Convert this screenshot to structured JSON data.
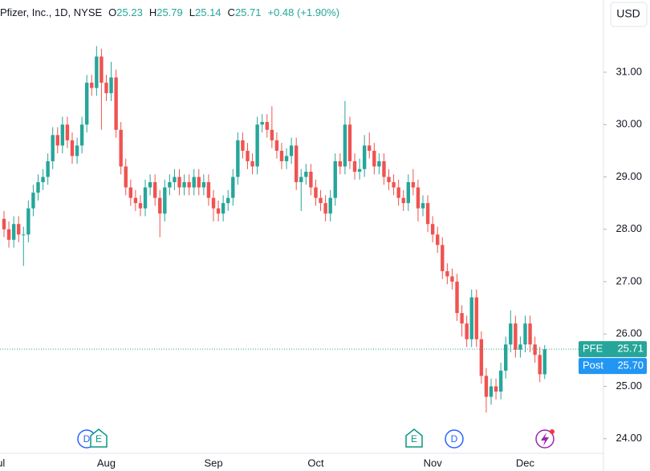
{
  "chart_data": {
    "type": "candlestick",
    "header": {
      "symbol": "Pfizer, Inc., 1D, NYSE",
      "ohlc": [
        {
          "label": "O",
          "value": "25.23"
        },
        {
          "label": "H",
          "value": "25.79"
        },
        {
          "label": "L",
          "value": "25.14"
        },
        {
          "label": "C",
          "value": "25.71"
        }
      ],
      "change": "+0.48 (+1.90%)"
    },
    "currency": "USD",
    "up_color": "#26a69a",
    "down_color": "#ef5350",
    "grid": false,
    "ylim": [
      23.72,
      32.38
    ],
    "yticks": [
      {
        "value": 24,
        "label": "24.00"
      },
      {
        "value": 25,
        "label": "25.00"
      },
      {
        "value": 26,
        "label": "26.00"
      },
      {
        "value": 27,
        "label": "27.00"
      },
      {
        "value": 28,
        "label": "28.00"
      },
      {
        "value": 29,
        "label": "29.00"
      },
      {
        "value": 30,
        "label": "30.00"
      },
      {
        "value": 31,
        "label": "31.00"
      }
    ],
    "last_price": {
      "name": "PFE",
      "value": 25.71
    },
    "post_price": {
      "name": "Post",
      "value": 25.7,
      "label": "25.70"
    },
    "events": [
      "D",
      "E",
      "E",
      "D"
    ],
    "categories": [
      "Jul",
      null,
      null,
      null,
      null,
      null,
      null,
      null,
      null,
      null,
      null,
      null,
      null,
      null,
      null,
      null,
      null,
      null,
      null,
      null,
      null,
      "Aug",
      null,
      null,
      null,
      null,
      null,
      null,
      null,
      null,
      null,
      null,
      null,
      null,
      null,
      null,
      null,
      null,
      null,
      null,
      null,
      null,
      null,
      "Sep",
      null,
      null,
      null,
      null,
      null,
      null,
      null,
      null,
      null,
      null,
      null,
      null,
      null,
      null,
      null,
      null,
      null,
      null,
      null,
      null,
      "Oct",
      null,
      null,
      null,
      null,
      null,
      null,
      null,
      null,
      null,
      null,
      null,
      null,
      null,
      null,
      null,
      null,
      null,
      null,
      null,
      null,
      null,
      null,
      null,
      "Nov",
      null,
      null,
      null,
      null,
      null,
      null,
      null,
      null,
      null,
      null,
      null,
      null,
      null,
      null,
      null,
      null,
      null,
      null,
      "Dec",
      null,
      null,
      null,
      null
    ],
    "candles": [
      [
        28.2,
        28.35,
        27.85,
        28.0
      ],
      [
        28.0,
        28.15,
        27.65,
        27.8
      ],
      [
        27.8,
        28.25,
        27.65,
        28.1
      ],
      [
        28.1,
        28.25,
        27.75,
        27.9
      ],
      [
        27.9,
        28.05,
        27.3,
        27.9
      ],
      [
        27.9,
        28.55,
        27.75,
        28.4
      ],
      [
        28.4,
        28.85,
        28.25,
        28.7
      ],
      [
        28.7,
        29.05,
        28.55,
        28.9
      ],
      [
        28.9,
        29.15,
        28.75,
        29.0
      ],
      [
        29.0,
        29.45,
        28.85,
        29.3
      ],
      [
        29.3,
        29.95,
        29.15,
        29.8
      ],
      [
        29.8,
        29.95,
        29.45,
        29.6
      ],
      [
        29.6,
        30.15,
        29.45,
        30.0
      ],
      [
        30.0,
        30.15,
        29.55,
        29.7
      ],
      [
        29.7,
        29.85,
        29.25,
        29.4
      ],
      [
        29.4,
        29.75,
        29.25,
        29.6
      ],
      [
        29.6,
        30.15,
        29.45,
        30.0
      ],
      [
        30.0,
        30.95,
        29.85,
        30.8
      ],
      [
        30.8,
        30.95,
        30.55,
        30.7
      ],
      [
        30.7,
        31.5,
        30.55,
        31.3
      ],
      [
        31.3,
        31.45,
        29.9,
        30.8
      ],
      [
        30.8,
        30.95,
        30.45,
        30.6
      ],
      [
        30.6,
        31.2,
        30.45,
        30.9
      ],
      [
        30.9,
        31.05,
        29.75,
        29.9
      ],
      [
        29.9,
        30.05,
        29.05,
        29.2
      ],
      [
        29.2,
        29.35,
        28.65,
        28.8
      ],
      [
        28.8,
        28.95,
        28.45,
        28.6
      ],
      [
        28.6,
        28.75,
        28.35,
        28.5
      ],
      [
        28.5,
        28.65,
        28.25,
        28.4
      ],
      [
        28.4,
        28.95,
        28.25,
        28.8
      ],
      [
        28.8,
        29.05,
        28.65,
        28.9
      ],
      [
        28.9,
        29.05,
        28.45,
        28.6
      ],
      [
        28.6,
        28.75,
        27.85,
        28.3
      ],
      [
        28.3,
        28.95,
        28.15,
        28.8
      ],
      [
        28.8,
        29.05,
        28.65,
        28.9
      ],
      [
        28.9,
        29.15,
        28.75,
        29.0
      ],
      [
        29.0,
        29.15,
        28.65,
        28.8
      ],
      [
        28.8,
        29.05,
        28.65,
        28.9
      ],
      [
        28.9,
        29.05,
        28.65,
        28.8
      ],
      [
        28.8,
        29.15,
        28.65,
        29.0
      ],
      [
        29.0,
        29.15,
        28.65,
        28.8
      ],
      [
        28.8,
        29.05,
        28.65,
        28.9
      ],
      [
        28.9,
        29.05,
        28.45,
        28.6
      ],
      [
        28.6,
        28.75,
        28.15,
        28.4
      ],
      [
        28.4,
        28.55,
        28.15,
        28.3
      ],
      [
        28.3,
        28.65,
        28.15,
        28.5
      ],
      [
        28.5,
        28.75,
        28.35,
        28.6
      ],
      [
        28.6,
        29.15,
        28.45,
        29.0
      ],
      [
        29.0,
        29.85,
        28.85,
        29.7
      ],
      [
        29.7,
        29.85,
        29.35,
        29.5
      ],
      [
        29.5,
        29.65,
        29.15,
        29.3
      ],
      [
        29.3,
        29.45,
        29.05,
        29.2
      ],
      [
        29.2,
        30.15,
        29.05,
        30.0
      ],
      [
        30.0,
        30.2,
        29.85,
        30.05
      ],
      [
        30.05,
        30.2,
        29.75,
        29.9
      ],
      [
        29.9,
        30.35,
        29.55,
        29.7
      ],
      [
        29.7,
        29.85,
        29.35,
        29.5
      ],
      [
        29.5,
        29.65,
        29.15,
        29.3
      ],
      [
        29.3,
        29.55,
        29.15,
        29.4
      ],
      [
        29.4,
        29.75,
        29.25,
        29.6
      ],
      [
        29.6,
        29.75,
        28.75,
        28.9
      ],
      [
        28.9,
        29.15,
        28.35,
        29.0
      ],
      [
        29.0,
        29.25,
        28.85,
        29.1
      ],
      [
        29.1,
        29.25,
        28.65,
        28.8
      ],
      [
        28.8,
        28.95,
        28.45,
        28.6
      ],
      [
        28.6,
        28.75,
        28.35,
        28.5
      ],
      [
        28.5,
        28.65,
        28.15,
        28.3
      ],
      [
        28.3,
        28.75,
        28.15,
        28.6
      ],
      [
        28.6,
        29.45,
        28.45,
        29.3
      ],
      [
        29.3,
        29.45,
        29.05,
        29.2
      ],
      [
        29.2,
        30.45,
        29.05,
        30.0
      ],
      [
        30.0,
        30.15,
        29.15,
        29.3
      ],
      [
        29.3,
        29.45,
        28.95,
        29.1
      ],
      [
        29.1,
        29.35,
        28.95,
        29.15
      ],
      [
        29.15,
        29.8,
        29.0,
        29.6
      ],
      [
        29.6,
        29.85,
        29.35,
        29.5
      ],
      [
        29.5,
        29.65,
        29.05,
        29.2
      ],
      [
        29.2,
        29.45,
        29.05,
        29.3
      ],
      [
        29.3,
        29.45,
        28.85,
        29.0
      ],
      [
        29.0,
        29.15,
        28.75,
        28.9
      ],
      [
        28.9,
        29.05,
        28.65,
        28.8
      ],
      [
        28.8,
        28.95,
        28.45,
        28.6
      ],
      [
        28.6,
        28.75,
        28.35,
        28.5
      ],
      [
        28.5,
        29.05,
        28.35,
        28.9
      ],
      [
        28.9,
        29.15,
        28.65,
        28.8
      ],
      [
        28.8,
        28.95,
        28.15,
        28.4
      ],
      [
        28.4,
        28.65,
        28.25,
        28.5
      ],
      [
        28.5,
        28.65,
        27.95,
        28.1
      ],
      [
        28.1,
        28.25,
        27.75,
        27.9
      ],
      [
        27.9,
        28.05,
        27.55,
        27.7
      ],
      [
        27.7,
        27.85,
        27.05,
        27.2
      ],
      [
        27.2,
        27.35,
        26.95,
        27.1
      ],
      [
        27.1,
        27.25,
        26.85,
        27.0
      ],
      [
        27.0,
        27.15,
        26.25,
        26.4
      ],
      [
        26.4,
        26.55,
        25.95,
        26.2
      ],
      [
        26.2,
        26.35,
        25.75,
        25.9
      ],
      [
        25.9,
        26.85,
        25.75,
        26.7
      ],
      [
        26.7,
        26.85,
        25.75,
        25.9
      ],
      [
        25.9,
        26.05,
        25.05,
        25.2
      ],
      [
        25.2,
        25.35,
        24.5,
        24.8
      ],
      [
        24.8,
        25.15,
        24.65,
        25.0
      ],
      [
        25.0,
        25.15,
        24.75,
        24.9
      ],
      [
        24.9,
        25.45,
        24.75,
        25.3
      ],
      [
        25.3,
        25.95,
        25.15,
        25.8
      ],
      [
        25.8,
        26.45,
        25.65,
        26.2
      ],
      [
        26.2,
        26.35,
        25.55,
        25.7
      ],
      [
        25.7,
        25.95,
        25.55,
        25.8
      ],
      [
        25.8,
        26.35,
        25.65,
        26.2
      ],
      [
        26.2,
        26.35,
        25.65,
        25.8
      ],
      [
        25.8,
        25.95,
        25.45,
        25.6
      ],
      [
        25.6,
        25.75,
        25.08,
        25.23
      ],
      [
        25.23,
        25.79,
        25.14,
        25.71
      ]
    ]
  }
}
